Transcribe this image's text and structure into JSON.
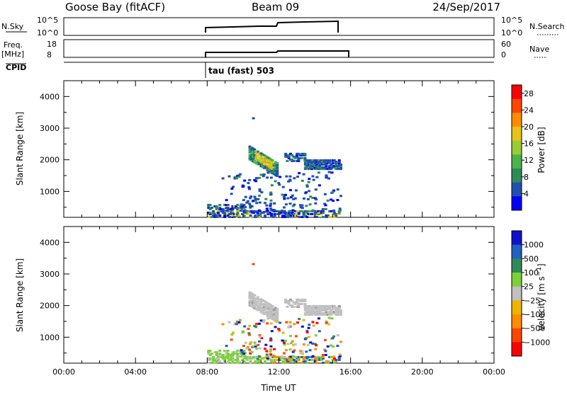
{
  "header": {
    "station": "Goose Bay (fitACF)",
    "beam": "Beam 09",
    "date": "24/Sep/2017"
  },
  "top_panels": {
    "nsky": {
      "label": "N.Sky",
      "left_ticks": [
        "10^5",
        "10^0"
      ],
      "right_ticks": [
        "10^5",
        "10^0"
      ],
      "right_label": "N.Search"
    },
    "freq": {
      "label_line1": "Freq.",
      "label_line2": "[MHz]",
      "left_ticks": [
        "18",
        "8"
      ],
      "right_ticks": [
        "60",
        "0"
      ],
      "right_label": "Nave"
    },
    "cpid": {
      "label": "CPID",
      "mode": "tau (fast) 503"
    }
  },
  "colors": {
    "power_scale": [
      "#0000ff",
      "#1f4fb0",
      "#2e8b57",
      "#49b449",
      "#9acd32",
      "#e8c31a",
      "#ff8c00",
      "#ff4500",
      "#ff0000"
    ],
    "velocity_scale": [
      "#ff0000",
      "#ff4500",
      "#ff8c00",
      "#f0b400",
      "#c0c0c0",
      "#7cd03a",
      "#2e8b57",
      "#2060c0",
      "#1010d0"
    ]
  },
  "chart_data": [
    {
      "type": "heatmap",
      "title": "",
      "xlabel": "",
      "ylabel": "Slant Range [km]",
      "xlim": [
        0,
        24
      ],
      "ylim": [
        180,
        4500
      ],
      "y_ticks": [
        1000,
        2000,
        3000,
        4000
      ],
      "colorbar": {
        "label": "Power [dB]",
        "ticks": [
          "4",
          "8",
          "12",
          "16",
          "20",
          "24",
          "28"
        ],
        "range": [
          0,
          30
        ]
      },
      "echo_regions": [
        {
          "t_start": 10.3,
          "t_end": 11.8,
          "r_start": 1600,
          "r_end": 2350,
          "level": 15
        },
        {
          "t_start": 12.3,
          "t_end": 15.4,
          "r_start": 1650,
          "r_end": 2150,
          "level": 7
        },
        {
          "t_start": 8.0,
          "t_end": 15.4,
          "r_start": 180,
          "r_end": 600,
          "level": 6
        }
      ],
      "grid": false
    },
    {
      "type": "heatmap",
      "title": "",
      "xlabel": "Time UT",
      "ylabel": "Slant Range [km]",
      "xlim": [
        0,
        24
      ],
      "ylim": [
        180,
        4500
      ],
      "x_ticks": [
        "00:00",
        "04:00",
        "08:00",
        "12:00",
        "16:00",
        "20:00",
        "00:00"
      ],
      "y_ticks": [
        1000,
        2000,
        3000,
        4000
      ],
      "colorbar": {
        "label": "Velocity [m s^-1]",
        "ticks": [
          "1000",
          "500",
          "100",
          "25",
          "−25",
          "−100",
          "−500",
          "−1000"
        ]
      },
      "echo_regions": [
        {
          "t_start": 10.3,
          "t_end": 11.8,
          "r_start": 1600,
          "r_end": 2350,
          "velocity_class": "ground scatter"
        },
        {
          "t_start": 12.3,
          "t_end": 15.4,
          "r_start": 1650,
          "r_end": 2150,
          "velocity_class": "ground scatter"
        },
        {
          "t_start": 8.0,
          "t_end": 11.5,
          "r_start": 180,
          "r_end": 600,
          "velocity_class": "100"
        }
      ],
      "grid": false
    }
  ]
}
